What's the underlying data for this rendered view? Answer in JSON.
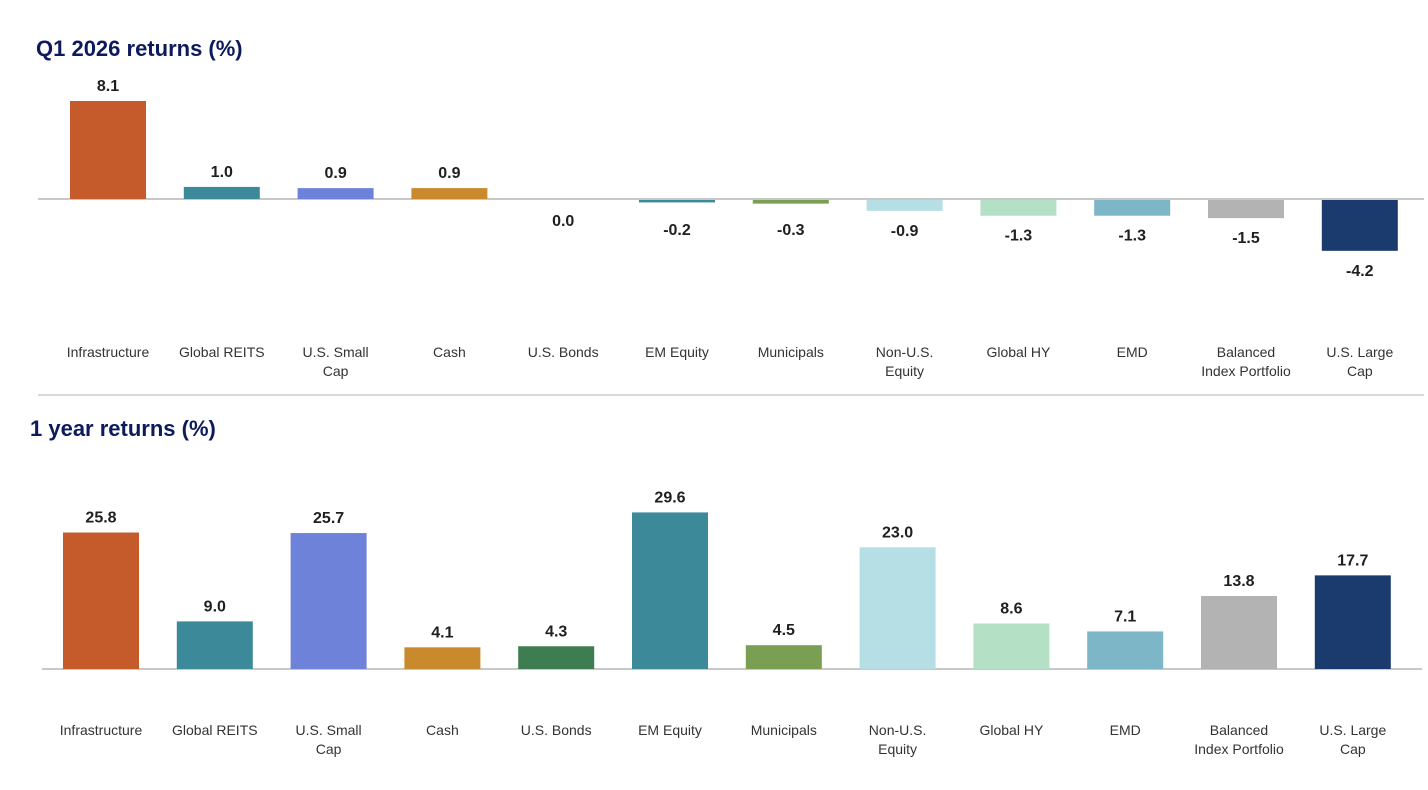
{
  "chart_data": [
    {
      "type": "bar",
      "title": "Q1 2026 returns (%)",
      "categories": [
        "Infrastructure",
        "Global REITS",
        "U.S. Small Cap",
        "Cash",
        "U.S. Bonds",
        "EM Equity",
        "Municipals",
        "Non-U.S. Equity",
        "Global HY",
        "EMD",
        "Balanced Index Portfolio",
        "U.S. Large Cap"
      ],
      "category_lines": [
        [
          "Infrastructure"
        ],
        [
          "Global REITS"
        ],
        [
          "U.S. Small",
          "Cap"
        ],
        [
          "Cash"
        ],
        [
          "U.S. Bonds"
        ],
        [
          "EM Equity"
        ],
        [
          "Municipals"
        ],
        [
          "Non-U.S.",
          "Equity"
        ],
        [
          "Global HY"
        ],
        [
          "EMD"
        ],
        [
          "Balanced",
          "Index Portfolio"
        ],
        [
          "U.S. Large",
          "Cap"
        ]
      ],
      "values": [
        8.1,
        1.0,
        0.9,
        0.9,
        0.0,
        -0.2,
        -0.3,
        -0.9,
        -1.3,
        -1.3,
        -1.5,
        -4.2
      ],
      "value_labels": [
        "8.1",
        "1.0",
        "0.9",
        "0.9",
        "0.0",
        "-0.2",
        "-0.3",
        "-0.9",
        "-1.3",
        "-1.3",
        "-1.5",
        "-4.2"
      ],
      "colors": [
        "#c55a2a",
        "#3c8a99",
        "#6f82d9",
        "#c98a2e",
        "#3e7d52",
        "#3c8a99",
        "#7a9e52",
        "#b5dee5",
        "#b4e0c6",
        "#7db6c6",
        "#b3b3b3",
        "#1b3a6e"
      ],
      "xlabel": "",
      "ylabel": "",
      "grid": false
    },
    {
      "type": "bar",
      "title": "1 year returns (%)",
      "categories": [
        "Infrastructure",
        "Global REITS",
        "U.S. Small Cap",
        "Cash",
        "U.S. Bonds",
        "EM Equity",
        "Municipals",
        "Non-U.S. Equity",
        "Global HY",
        "EMD",
        "Balanced Index Portfolio",
        "U.S. Large Cap"
      ],
      "category_lines": [
        [
          "Infrastructure"
        ],
        [
          "Global REITS"
        ],
        [
          "U.S. Small",
          "Cap"
        ],
        [
          "Cash"
        ],
        [
          "U.S. Bonds"
        ],
        [
          "EM Equity"
        ],
        [
          "Municipals"
        ],
        [
          "Non-U.S.",
          "Equity"
        ],
        [
          "Global HY"
        ],
        [
          "EMD"
        ],
        [
          "Balanced",
          "Index Portfolio"
        ],
        [
          "U.S. Large",
          "Cap"
        ]
      ],
      "values": [
        25.8,
        9.0,
        25.7,
        4.1,
        4.3,
        29.6,
        4.5,
        23.0,
        8.6,
        7.1,
        13.8,
        17.7
      ],
      "value_labels": [
        "25.8",
        "9.0",
        "25.7",
        "4.1",
        "4.3",
        "29.6",
        "4.5",
        "23.0",
        "8.6",
        "7.1",
        "13.8",
        "17.7"
      ],
      "colors": [
        "#c55a2a",
        "#3c8a99",
        "#6f82d9",
        "#c98a2e",
        "#3e7d52",
        "#3c8a99",
        "#7a9e52",
        "#b5dee5",
        "#b4e0c6",
        "#7db6c6",
        "#b3b3b3",
        "#1b3a6e"
      ],
      "xlabel": "",
      "ylabel": "",
      "grid": false
    }
  ]
}
